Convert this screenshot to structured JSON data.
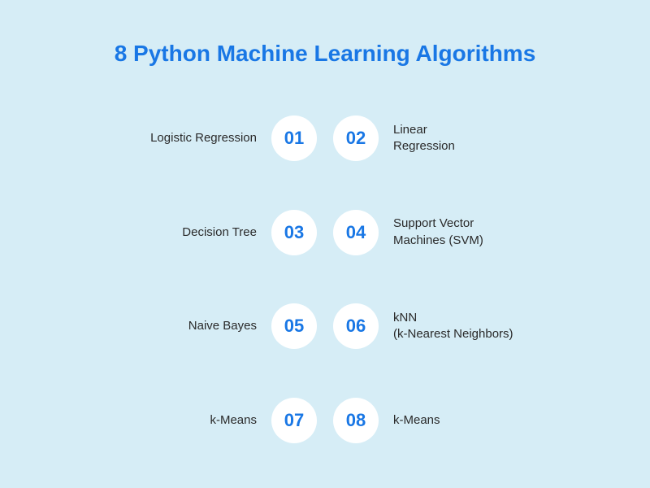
{
  "title": "8 Python Machine Learning Algorithms",
  "background_color": "#d6edf6",
  "title_color": "#1977e5",
  "title_fontsize": 28,
  "circle_bg_color": "#ffffff",
  "circle_text_color": "#1977e5",
  "circle_diameter": 56,
  "circle_fontsize": 22,
  "label_color": "#2a2a2a",
  "label_fontsize": 15,
  "items": [
    {
      "number": "01",
      "label": "Logistic Regression"
    },
    {
      "number": "02",
      "label": "Linear\nRegression"
    },
    {
      "number": "03",
      "label": "Decision Tree"
    },
    {
      "number": "04",
      "label": "Support Vector\nMachines (SVM)"
    },
    {
      "number": "05",
      "label": "Naive Bayes"
    },
    {
      "number": "06",
      "label": "kNN\n (k-Nearest Neighbors)"
    },
    {
      "number": "07",
      "label": "k-Means"
    },
    {
      "number": "08",
      "label": "k-Means"
    }
  ]
}
